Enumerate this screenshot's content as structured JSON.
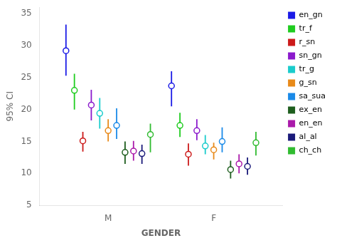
{
  "chart_data": {
    "type": "errorbar",
    "xlabel": "GENDER",
    "ylabel": "95% CI",
    "categories": [
      "M",
      "F"
    ],
    "series": [
      {
        "name": "en_gn",
        "color": "#1a1ae6",
        "values": [
          29.2,
          23.7
        ],
        "low": [
          25.3,
          20.5
        ],
        "high": [
          33.3,
          26.0
        ]
      },
      {
        "name": "tr_f",
        "color": "#1fcc1f",
        "values": [
          23.0,
          17.5
        ],
        "low": [
          20.0,
          15.7
        ],
        "high": [
          25.6,
          19.5
        ]
      },
      {
        "name": "r_sn",
        "color": "#cc1a1a",
        "values": [
          15.1,
          13.0
        ],
        "low": [
          13.4,
          11.2
        ],
        "high": [
          16.5,
          14.7
        ]
      },
      {
        "name": "sn_gn",
        "color": "#8b1acc",
        "values": [
          20.7,
          16.7
        ],
        "low": [
          18.3,
          15.2
        ],
        "high": [
          23.1,
          18.5
        ]
      },
      {
        "name": "tr_g",
        "color": "#1acccc",
        "values": [
          19.4,
          14.3
        ],
        "low": [
          17.0,
          13.0
        ],
        "high": [
          21.8,
          16.0
        ]
      },
      {
        "name": "g_sn",
        "color": "#e88a1a",
        "values": [
          16.7,
          13.7
        ],
        "low": [
          15.0,
          12.2
        ],
        "high": [
          18.5,
          14.8
        ]
      },
      {
        "name": "sa_sua",
        "color": "#1a8ae8",
        "values": [
          17.5,
          15.0
        ],
        "low": [
          15.4,
          13.3
        ],
        "high": [
          20.2,
          17.2
        ]
      },
      {
        "name": "ex_en",
        "color": "#1e5e1e",
        "values": [
          13.3,
          10.6
        ],
        "low": [
          11.5,
          9.2
        ],
        "high": [
          15.0,
          12.0
        ]
      },
      {
        "name": "en_en",
        "color": "#aa1aaa",
        "values": [
          13.5,
          11.5
        ],
        "low": [
          12.0,
          10.0
        ],
        "high": [
          15.1,
          13.0
        ]
      },
      {
        "name": "al_al",
        "color": "#1a1a7a",
        "values": [
          13.1,
          11.1
        ],
        "low": [
          11.5,
          9.8
        ],
        "high": [
          14.5,
          12.5
        ]
      },
      {
        "name": "ch_ch",
        "color": "#30bb30",
        "values": [
          16.1,
          14.8
        ],
        "low": [
          13.3,
          12.8
        ],
        "high": [
          17.8,
          16.5
        ]
      }
    ],
    "ylim": [
      5,
      36
    ],
    "yticks": [
      5,
      10,
      15,
      20,
      25,
      30,
      35
    ],
    "grid": false,
    "legend": "right",
    "marker": "circle"
  }
}
